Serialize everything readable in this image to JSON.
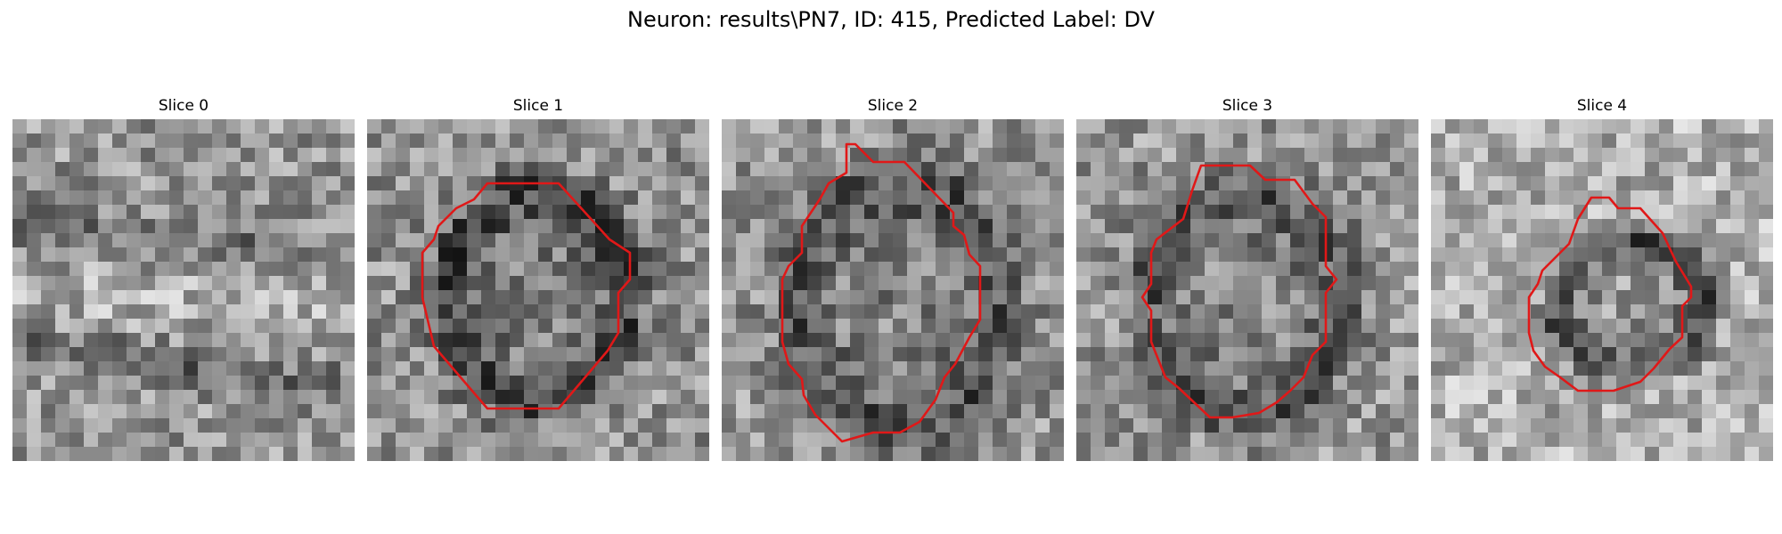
{
  "title": "Neuron: results\\PN7, ID: 415, Predicted Label: DV",
  "colors": {
    "contour": "#e01818",
    "background": "#ffffff"
  },
  "image": {
    "colormap": "grayscale",
    "grid_size": 24
  },
  "slices": [
    {
      "label": "Slice 0",
      "has_contour": false
    },
    {
      "label": "Slice 1",
      "has_contour": true
    },
    {
      "label": "Slice 2",
      "has_contour": true
    },
    {
      "label": "Slice 3",
      "has_contour": true
    },
    {
      "label": "Slice 4",
      "has_contour": true
    }
  ]
}
